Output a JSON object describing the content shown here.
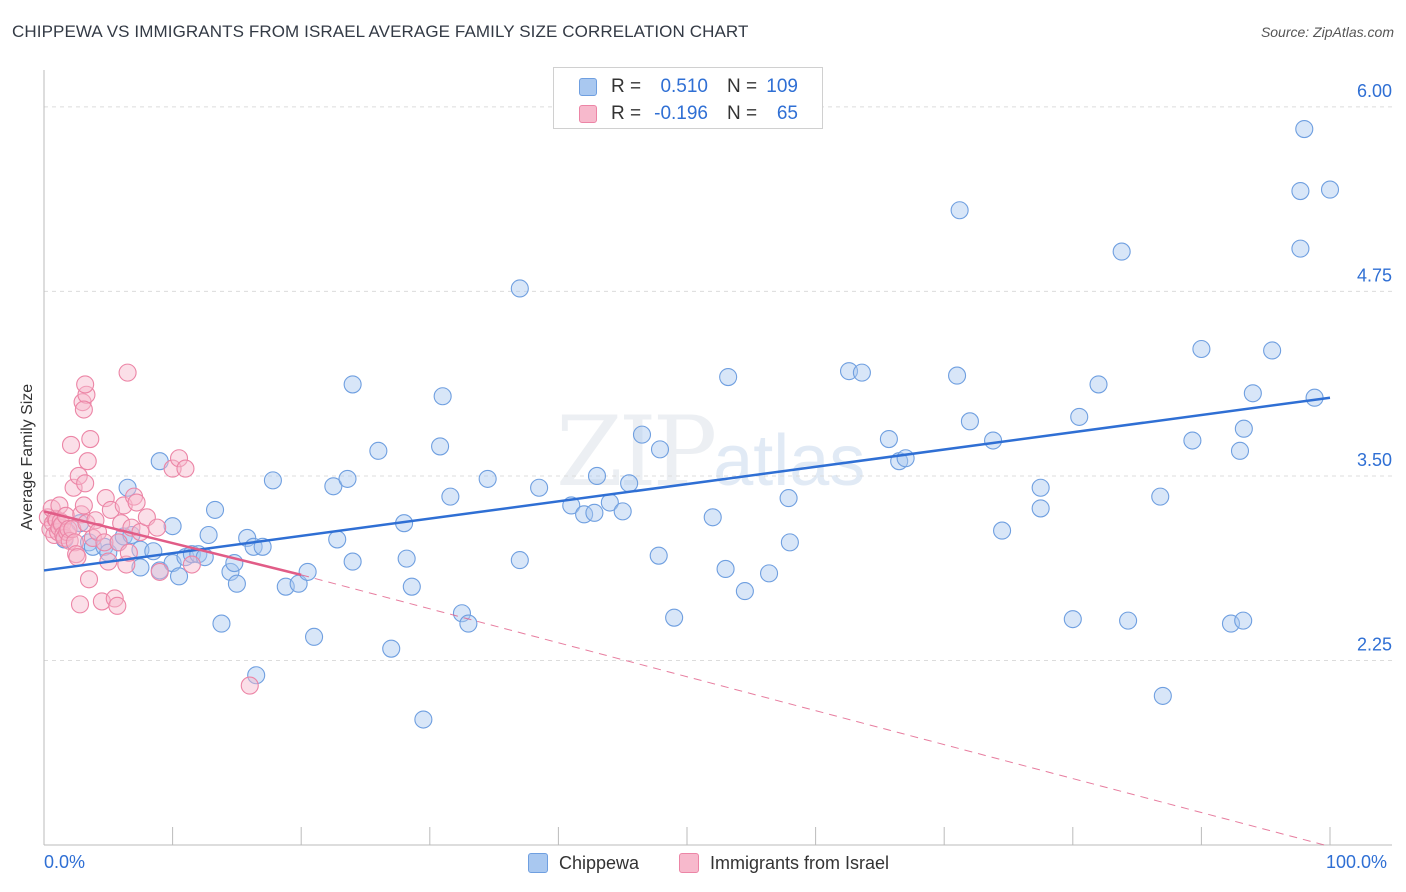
{
  "header": {
    "title": "CHIPPEWA VS IMMIGRANTS FROM ISRAEL AVERAGE FAMILY SIZE CORRELATION CHART",
    "source": "Source: ZipAtlas.com"
  },
  "watermark": {
    "big": "ZIP",
    "small": "atlas"
  },
  "legend": {
    "r_label": "R =",
    "n_label": "N =",
    "rows": [
      {
        "r": "0.510",
        "n": "109",
        "color": "#a9c8f0",
        "edge": "#6f9fe0"
      },
      {
        "r": "-0.196",
        "n": "65",
        "color": "#f7b9cc",
        "edge": "#ec85a6"
      }
    ]
  },
  "colors": {
    "blue_fill": "#a9c8f0",
    "blue_edge": "#6f9fe0",
    "blue_line": "#2f6fd4",
    "pink_fill": "#f7b9cc",
    "pink_edge": "#ec85a6",
    "pink_line": "#e15c87",
    "grid": "#dcdcdc",
    "tick_label": "#2f6fd4"
  },
  "chart_data": {
    "type": "scatter",
    "title": "CHIPPEWA VS IMMIGRANTS FROM ISRAEL AVERAGE FAMILY SIZE CORRELATION CHART",
    "xlabel": "",
    "ylabel": "Average Family Size",
    "xlim": [
      0,
      1
    ],
    "ylim": [
      1.0,
      6.25
    ],
    "x_tick_labels": {
      "min": "0.0%",
      "max": "100.0%"
    },
    "y_ticks": [
      {
        "value": 2.25,
        "label": "2.25"
      },
      {
        "value": 3.5,
        "label": "3.50"
      },
      {
        "value": 4.75,
        "label": "4.75"
      },
      {
        "value": 6.0,
        "label": "6.00"
      }
    ],
    "series": [
      {
        "name": "Chippewa",
        "trend": {
          "x0": 0.0,
          "y0": 2.86,
          "x1": 1.0,
          "y1": 4.03,
          "style": "solid"
        },
        "points": [
          [
            0.016,
            3.07
          ],
          [
            0.028,
            3.18
          ],
          [
            0.035,
            3.05
          ],
          [
            0.038,
            3.02
          ],
          [
            0.047,
            3.02
          ],
          [
            0.05,
            2.98
          ],
          [
            0.058,
            3.05
          ],
          [
            0.062,
            3.09
          ],
          [
            0.068,
            3.1
          ],
          [
            0.065,
            3.42
          ],
          [
            0.075,
            3.0
          ],
          [
            0.075,
            2.88
          ],
          [
            0.085,
            2.99
          ],
          [
            0.09,
            3.6
          ],
          [
            0.09,
            2.86
          ],
          [
            0.1,
            2.91
          ],
          [
            0.1,
            3.16
          ],
          [
            0.105,
            2.82
          ],
          [
            0.11,
            2.95
          ],
          [
            0.115,
            2.97
          ],
          [
            0.12,
            2.97
          ],
          [
            0.125,
            2.95
          ],
          [
            0.128,
            3.1
          ],
          [
            0.133,
            3.27
          ],
          [
            0.138,
            2.5
          ],
          [
            0.145,
            2.85
          ],
          [
            0.148,
            2.91
          ],
          [
            0.15,
            2.77
          ],
          [
            0.158,
            3.08
          ],
          [
            0.163,
            3.02
          ],
          [
            0.165,
            2.15
          ],
          [
            0.17,
            3.02
          ],
          [
            0.178,
            3.47
          ],
          [
            0.188,
            2.75
          ],
          [
            0.198,
            2.77
          ],
          [
            0.205,
            2.85
          ],
          [
            0.21,
            2.41
          ],
          [
            0.225,
            3.43
          ],
          [
            0.228,
            3.07
          ],
          [
            0.236,
            3.48
          ],
          [
            0.24,
            4.12
          ],
          [
            0.24,
            2.92
          ],
          [
            0.26,
            3.67
          ],
          [
            0.27,
            2.33
          ],
          [
            0.28,
            3.18
          ],
          [
            0.282,
            2.94
          ],
          [
            0.286,
            2.75
          ],
          [
            0.295,
            1.85
          ],
          [
            0.308,
            3.7
          ],
          [
            0.31,
            4.04
          ],
          [
            0.316,
            3.36
          ],
          [
            0.325,
            2.57
          ],
          [
            0.33,
            2.5
          ],
          [
            0.345,
            3.48
          ],
          [
            0.37,
            2.93
          ],
          [
            0.37,
            4.77
          ],
          [
            0.385,
            3.42
          ],
          [
            0.41,
            3.3
          ],
          [
            0.42,
            3.24
          ],
          [
            0.428,
            3.25
          ],
          [
            0.43,
            3.5
          ],
          [
            0.44,
            3.32
          ],
          [
            0.45,
            3.26
          ],
          [
            0.455,
            3.45
          ],
          [
            0.465,
            3.78
          ],
          [
            0.478,
            2.96
          ],
          [
            0.479,
            3.68
          ],
          [
            0.49,
            2.54
          ],
          [
            0.52,
            3.22
          ],
          [
            0.53,
            2.87
          ],
          [
            0.532,
            4.17
          ],
          [
            0.545,
            2.72
          ],
          [
            0.5638,
            2.84
          ],
          [
            0.579,
            3.35
          ],
          [
            0.58,
            3.05
          ],
          [
            0.626,
            4.21
          ],
          [
            0.636,
            4.2
          ],
          [
            0.657,
            3.75
          ],
          [
            0.665,
            3.6
          ],
          [
            0.67,
            3.62
          ],
          [
            0.712,
            5.3
          ],
          [
            0.71,
            4.18
          ],
          [
            0.738,
            3.74
          ],
          [
            0.745,
            3.13
          ],
          [
            0.775,
            3.42
          ],
          [
            0.775,
            3.28
          ],
          [
            0.8,
            2.53
          ],
          [
            0.805,
            3.9
          ],
          [
            0.82,
            4.12
          ],
          [
            0.843,
            2.52
          ],
          [
            0.838,
            5.02
          ],
          [
            0.868,
            3.36
          ],
          [
            0.87,
            2.01
          ],
          [
            0.893,
            3.74
          ],
          [
            0.9,
            4.36
          ],
          [
            0.923,
            2.5
          ],
          [
            0.93,
            3.67
          ],
          [
            0.933,
            3.82
          ],
          [
            0.94,
            4.06
          ],
          [
            0.955,
            4.35
          ],
          [
            0.98,
            5.85
          ],
          [
            0.977,
            5.43
          ],
          [
            0.977,
            5.04
          ],
          [
            1.0,
            5.44
          ],
          [
            0.988,
            4.03
          ],
          [
            0.9325,
            2.52
          ],
          [
            0.72,
            3.87
          ]
        ]
      },
      {
        "name": "Immigrants from Israel",
        "trend_solid": {
          "x0": 0.0,
          "y0": 3.26,
          "x1": 0.2,
          "y1": 2.83
        },
        "trend_dashed": {
          "x0": 0.2,
          "y0": 2.83,
          "x1": 1.0,
          "y1": 0.99
        },
        "points": [
          [
            0.003,
            3.22
          ],
          [
            0.005,
            3.14
          ],
          [
            0.006,
            3.28
          ],
          [
            0.007,
            3.18
          ],
          [
            0.008,
            3.1
          ],
          [
            0.009,
            3.21
          ],
          [
            0.01,
            3.2
          ],
          [
            0.011,
            3.12
          ],
          [
            0.012,
            3.15
          ],
          [
            0.012,
            3.3
          ],
          [
            0.013,
            3.19
          ],
          [
            0.014,
            3.17
          ],
          [
            0.015,
            3.1
          ],
          [
            0.016,
            3.08
          ],
          [
            0.017,
            3.23
          ],
          [
            0.018,
            3.12
          ],
          [
            0.019,
            3.14
          ],
          [
            0.02,
            3.06
          ],
          [
            0.021,
            3.71
          ],
          [
            0.022,
            3.14
          ],
          [
            0.023,
            3.42
          ],
          [
            0.024,
            3.05
          ],
          [
            0.025,
            2.97
          ],
          [
            0.026,
            2.95
          ],
          [
            0.027,
            3.5
          ],
          [
            0.028,
            2.63
          ],
          [
            0.029,
            3.24
          ],
          [
            0.03,
            4.0
          ],
          [
            0.031,
            3.3
          ],
          [
            0.032,
            3.45
          ],
          [
            0.033,
            3.18
          ],
          [
            0.034,
            3.6
          ],
          [
            0.035,
            2.8
          ],
          [
            0.036,
            3.75
          ],
          [
            0.038,
            3.08
          ],
          [
            0.04,
            3.2
          ],
          [
            0.042,
            3.12
          ],
          [
            0.045,
            2.65
          ],
          [
            0.047,
            3.05
          ],
          [
            0.048,
            3.35
          ],
          [
            0.05,
            2.92
          ],
          [
            0.052,
            3.27
          ],
          [
            0.055,
            2.67
          ],
          [
            0.057,
            2.62
          ],
          [
            0.058,
            3.05
          ],
          [
            0.06,
            3.18
          ],
          [
            0.062,
            3.3
          ],
          [
            0.064,
            2.9
          ],
          [
            0.066,
            2.98
          ],
          [
            0.068,
            3.15
          ],
          [
            0.07,
            3.36
          ],
          [
            0.072,
            3.32
          ],
          [
            0.075,
            3.12
          ],
          [
            0.08,
            3.22
          ],
          [
            0.088,
            3.15
          ],
          [
            0.09,
            2.85
          ],
          [
            0.1,
            3.55
          ],
          [
            0.105,
            3.62
          ],
          [
            0.11,
            3.55
          ],
          [
            0.115,
            2.9
          ],
          [
            0.16,
            2.08
          ],
          [
            0.033,
            4.05
          ],
          [
            0.031,
            3.95
          ],
          [
            0.032,
            4.12
          ],
          [
            0.065,
            4.2
          ]
        ]
      }
    ]
  },
  "bottom_legend": [
    {
      "label": "Chippewa",
      "color": "#a9c8f0",
      "edge": "#6f9fe0"
    },
    {
      "label": "Immigrants from Israel",
      "color": "#f7b9cc",
      "edge": "#ec85a6"
    }
  ]
}
